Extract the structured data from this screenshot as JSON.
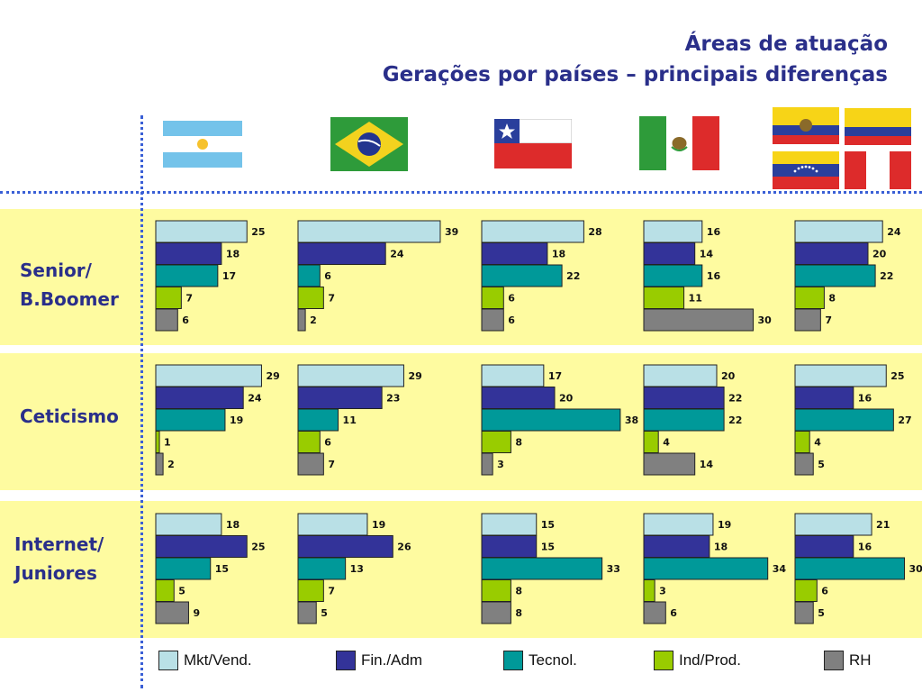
{
  "header": {
    "title_line1": "Áreas de atuação",
    "title_line2": "Gerações por países – principais diferenças"
  },
  "rows": [
    {
      "label_line1": "Senior/",
      "label_line2": "B.Boomer"
    },
    {
      "label_line1": "Ceticismo",
      "label_line2": ""
    },
    {
      "label_line1": "Internet/",
      "label_line2": "Juniores"
    }
  ],
  "flags": [
    "argentina-flag",
    "brazil-flag",
    "chile-flag",
    "mexico-flag",
    "ecuador-flag",
    "colombia-flag",
    "venezuela-flag",
    "peru-flag"
  ],
  "colors": {
    "band": "#fefba0",
    "mkt": "#b9e0e6",
    "fin": "#333399",
    "tecnol": "#009999",
    "ind": "#99cc00",
    "rh": "#808080",
    "title": "#2a2f8a"
  },
  "chart_data": {
    "type": "bar",
    "orientation": "horizontal",
    "series_names": [
      "Mkt/Vend.",
      "Fin./Adm",
      "Tecnol.",
      "Ind/Prod.",
      "RH"
    ],
    "rows": [
      "Senior/B.Boomer",
      "Ceticismo",
      "Internet/Juniores"
    ],
    "grid": false,
    "legend_position": "bottom",
    "panels": [
      [
        [
          25,
          18,
          17,
          7,
          6
        ],
        [
          39,
          24,
          6,
          7,
          2
        ],
        [
          28,
          18,
          22,
          6,
          6
        ],
        [
          16,
          14,
          16,
          11,
          30
        ],
        [
          24,
          20,
          22,
          8,
          7
        ]
      ],
      [
        [
          29,
          24,
          19,
          1,
          2
        ],
        [
          29,
          23,
          11,
          6,
          7
        ],
        [
          17,
          20,
          38,
          8,
          3
        ],
        [
          20,
          22,
          22,
          4,
          14
        ],
        [
          25,
          16,
          27,
          4,
          5
        ]
      ],
      [
        [
          18,
          25,
          15,
          5,
          9
        ],
        [
          19,
          26,
          13,
          7,
          5
        ],
        [
          15,
          15,
          33,
          8,
          8
        ],
        [
          19,
          18,
          34,
          3,
          6
        ],
        [
          21,
          16,
          30,
          6,
          5
        ]
      ]
    ]
  },
  "legend": {
    "items": [
      "Mkt/Vend.",
      "Fin./Adm",
      "Tecnol.",
      "Ind/Prod.",
      "RH"
    ]
  }
}
